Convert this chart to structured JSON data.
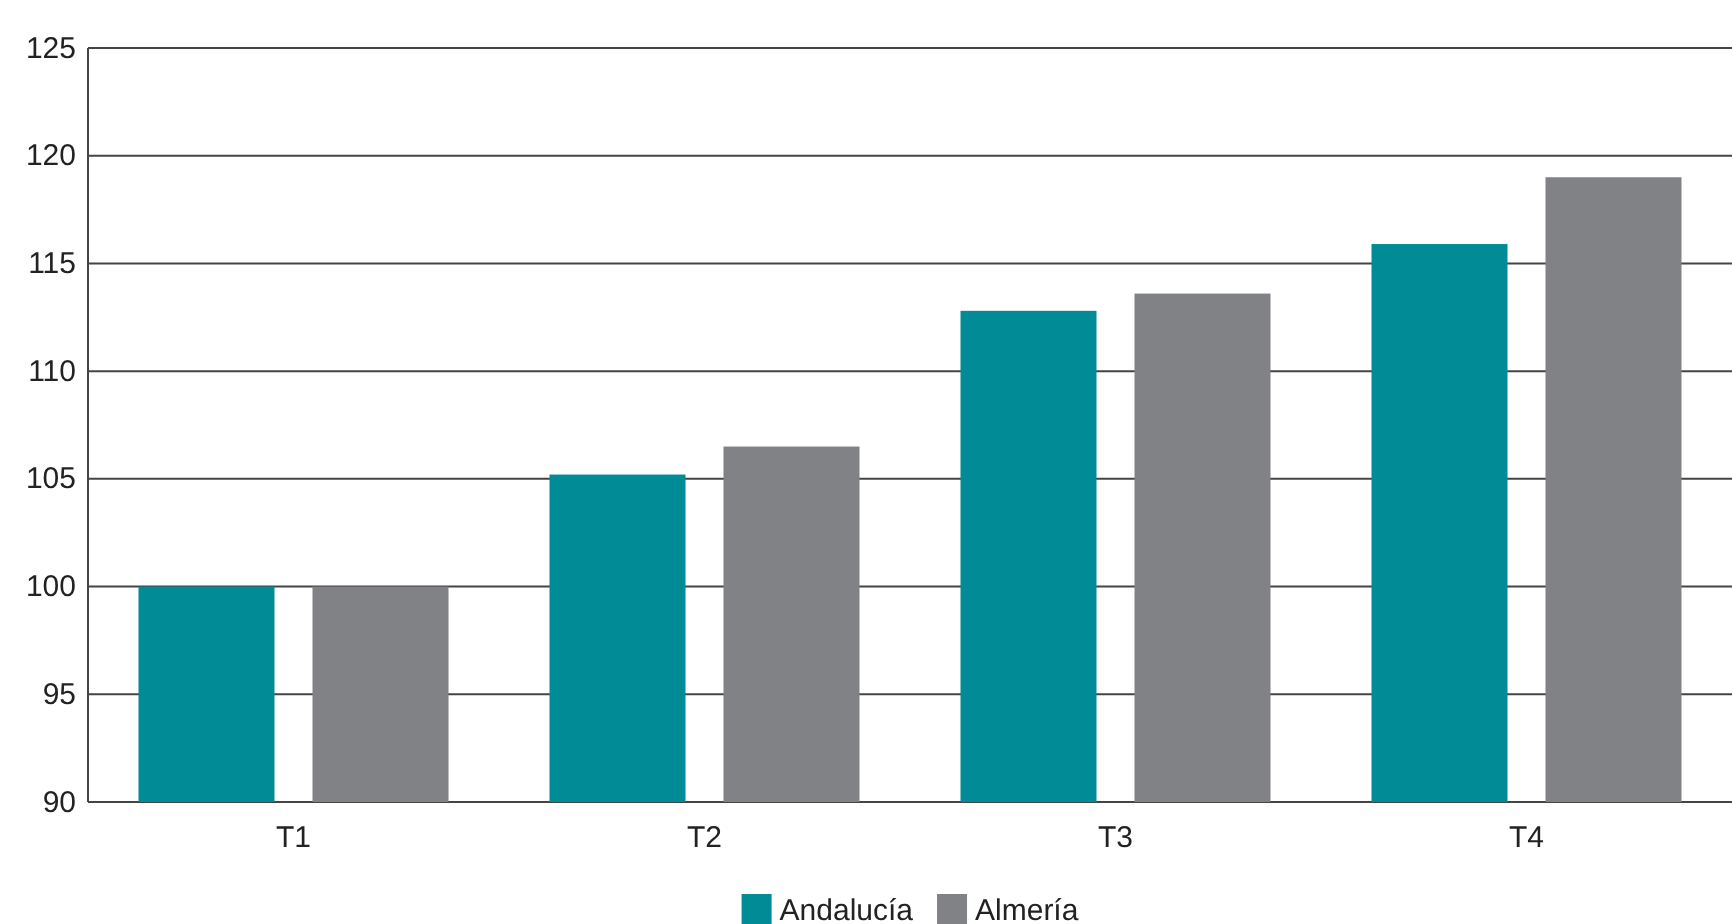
{
  "chart_data": {
    "type": "bar",
    "categories": [
      "T1",
      "T2",
      "T3",
      "T4"
    ],
    "series": [
      {
        "name": "Andalucía",
        "color": "#008b96",
        "values": [
          100,
          105.2,
          112.8,
          115.9
        ]
      },
      {
        "name": "Almería",
        "color": "#818286",
        "values": [
          100,
          106.5,
          113.6,
          119.0
        ]
      }
    ],
    "ylim": [
      90,
      125
    ],
    "yticks": [
      90,
      95,
      100,
      105,
      110,
      115,
      120,
      125
    ],
    "grid": "y",
    "legend": "bottom"
  }
}
